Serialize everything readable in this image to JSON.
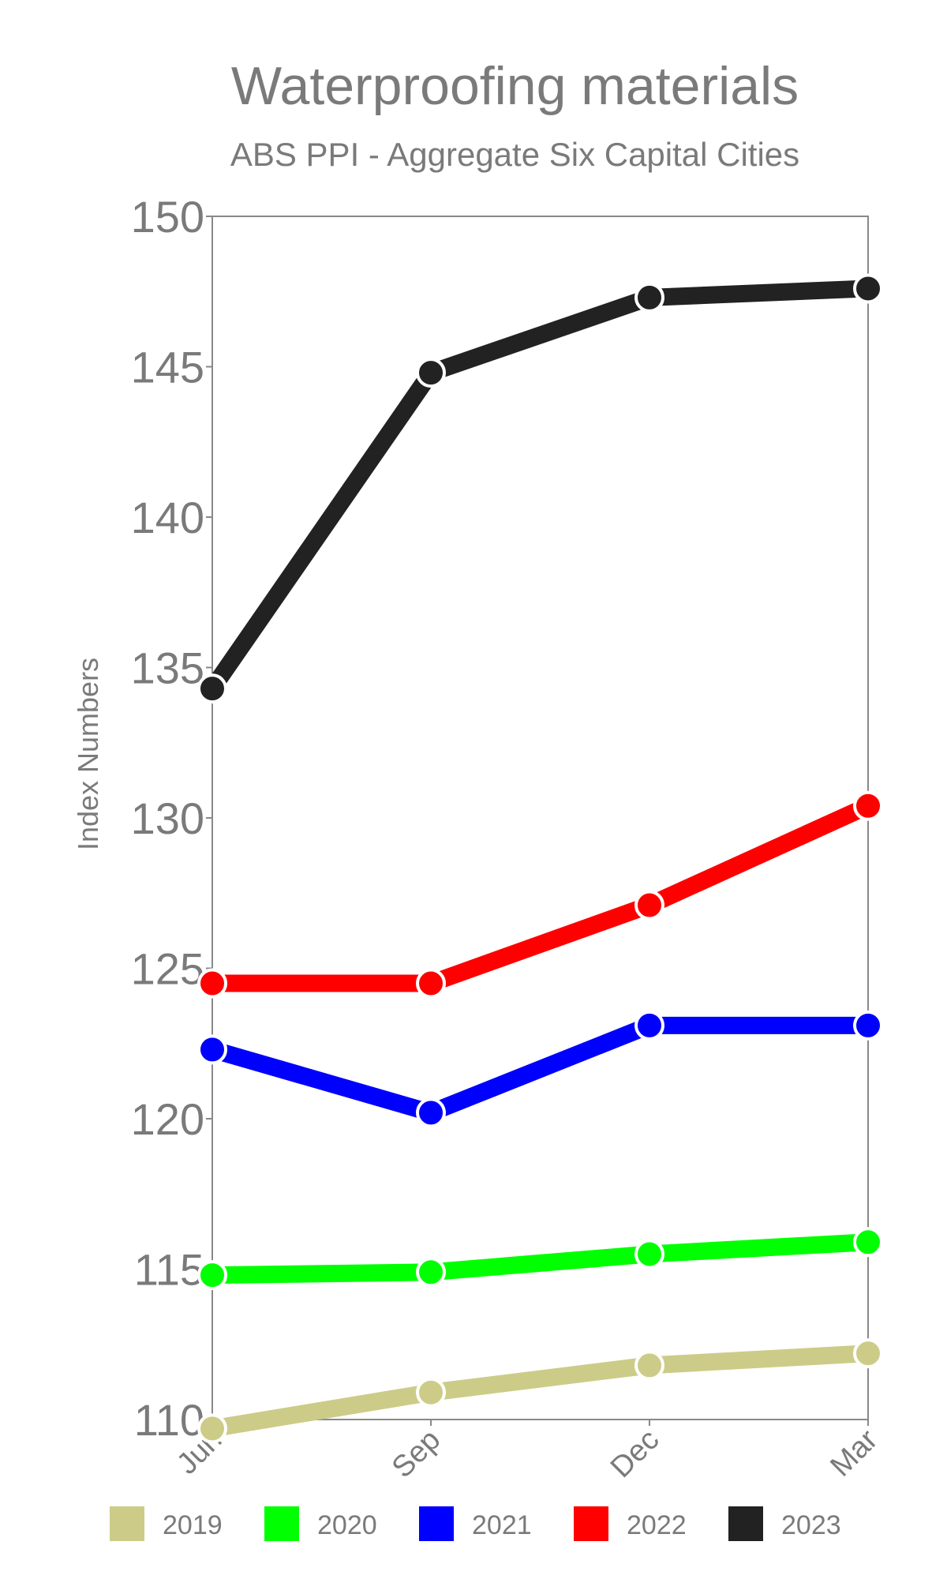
{
  "chart_data": {
    "type": "line",
    "title": "Waterproofing materials",
    "subtitle": "ABS PPI - Aggregate Six Capital Cities",
    "ylabel": "Index Numbers",
    "xlabel": "",
    "categories": [
      "Jun",
      "Sep",
      "Dec",
      "Mar"
    ],
    "ylim": [
      110,
      150
    ],
    "yticks": [
      110,
      115,
      120,
      125,
      130,
      135,
      140,
      145,
      150
    ],
    "grid": false,
    "legend_position": "bottom",
    "series": [
      {
        "name": "2019",
        "color": "#cccc88",
        "values": [
          109.7,
          110.9,
          111.8,
          112.2
        ]
      },
      {
        "name": "2020",
        "color": "#00ff00",
        "values": [
          114.8,
          114.9,
          115.5,
          115.9
        ]
      },
      {
        "name": "2021",
        "color": "#0000ff",
        "values": [
          122.3,
          120.2,
          123.1,
          123.1
        ]
      },
      {
        "name": "2022",
        "color": "#ff0000",
        "values": [
          124.5,
          124.5,
          127.1,
          130.4
        ]
      },
      {
        "name": "2023",
        "color": "#222222",
        "values": [
          134.3,
          144.8,
          147.3,
          147.6
        ]
      }
    ]
  }
}
